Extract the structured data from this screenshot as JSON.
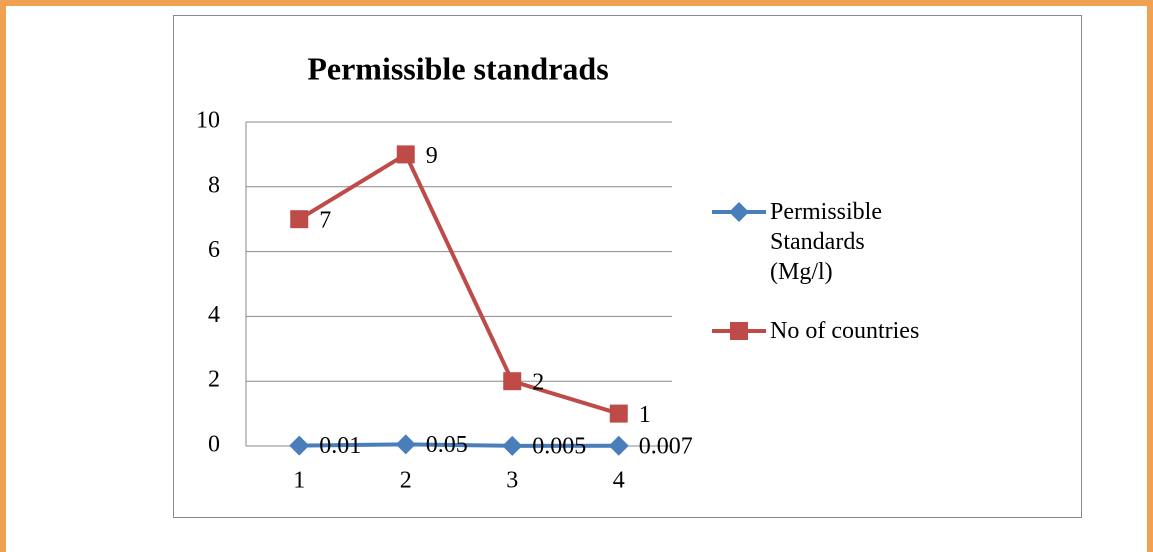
{
  "chart_data": {
    "type": "line",
    "title": "Permissible standrads",
    "categories": [
      "1",
      "2",
      "3",
      "4"
    ],
    "series": [
      {
        "name": "Permissible Standards (Mg/l)",
        "color": "#4a7ebb",
        "marker": "diamond",
        "values": [
          0.01,
          0.05,
          0.005,
          0.007
        ]
      },
      {
        "name": "No of countries",
        "color": "#be4b48",
        "marker": "square",
        "values": [
          7,
          9,
          2,
          1
        ]
      }
    ],
    "ylim": [
      0,
      10
    ],
    "yticks": [
      0,
      2,
      4,
      6,
      8,
      10
    ],
    "grid": true,
    "legend": "right"
  }
}
